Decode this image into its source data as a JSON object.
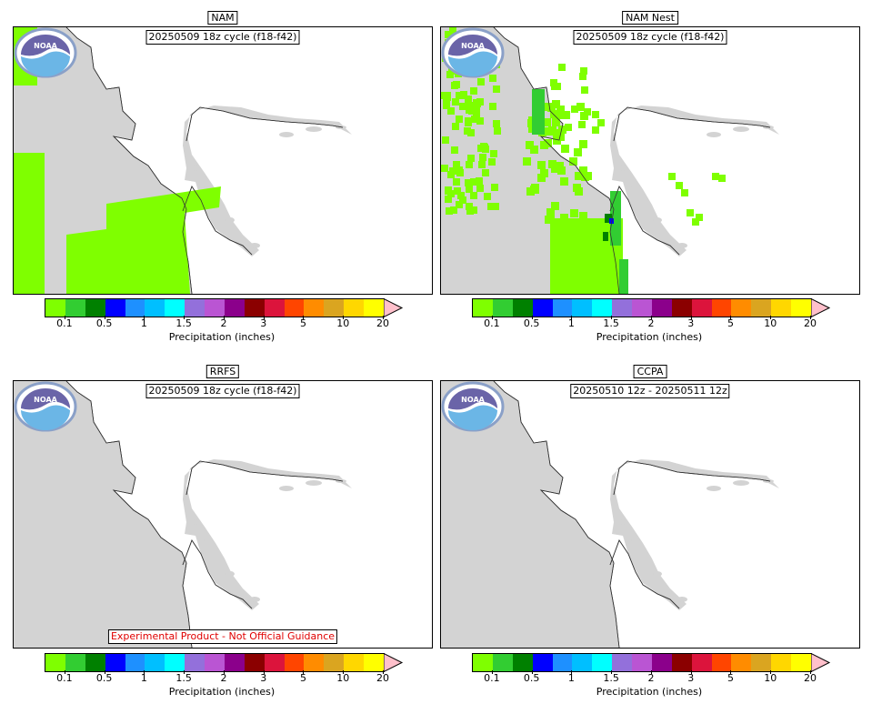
{
  "panels": [
    {
      "title": "NAM",
      "cycle": "20250509 18z cycle (f18-f42)",
      "precip": "nam"
    },
    {
      "title": "NAM Nest",
      "cycle": "20250509 18z cycle (f18-f42)",
      "precip": "nest"
    },
    {
      "title": "RRFS",
      "cycle": "20250509 18z cycle (f18-f42)",
      "precip": "none",
      "warning": "Experimental Product - Not Official Guidance"
    },
    {
      "title": "CCPA",
      "cycle": "20250510 12z - 20250511 12z",
      "precip": "none"
    }
  ],
  "colorbar": {
    "label": "Precipitation (inches)",
    "colors": [
      "#7fff00",
      "#32cd32",
      "#008000",
      "#0000ff",
      "#1e90ff",
      "#00bfff",
      "#00ffff",
      "#9370db",
      "#ba55d3",
      "#8b008b",
      "#8b0000",
      "#dc143c",
      "#ff4500",
      "#ff8c00",
      "#daa520",
      "#ffd700",
      "#ffff00"
    ],
    "over_color": "#ffc0cb",
    "ticks": [
      "0.1",
      "0.5",
      "1",
      "1.5",
      "2",
      "3",
      "5",
      "10",
      "20"
    ]
  },
  "logo_text": "NOAA",
  "map_colors": {
    "land": "#d3d3d3",
    "water": "#ffffff",
    "border": "#333333"
  }
}
